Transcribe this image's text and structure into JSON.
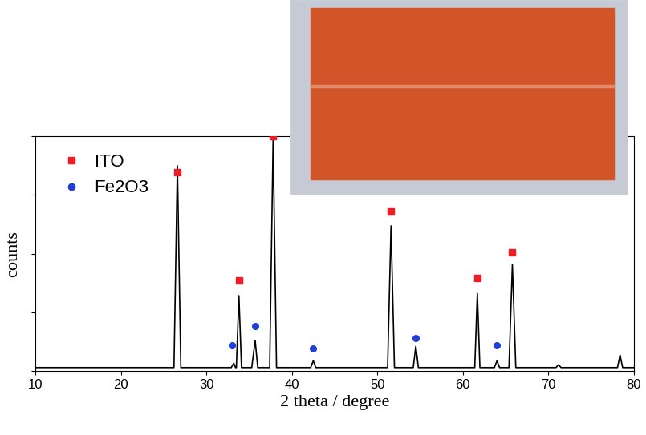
{
  "chart_data": {
    "type": "line",
    "y_label": "counts",
    "x_label": "2 theta / degree",
    "x": [
      10,
      26.2,
      26.6,
      27.0,
      32.9,
      33.2,
      33.4,
      33.5,
      33.8,
      34.1,
      35.3,
      35.7,
      36.0,
      37.4,
      37.8,
      38.2,
      42.2,
      42.5,
      42.8,
      51.2,
      51.6,
      52.0,
      54.2,
      54.5,
      54.8,
      61.4,
      61.7,
      62.0,
      63.7,
      64.0,
      64.3,
      65.4,
      65.8,
      66.2,
      70.9,
      71.2,
      71.5,
      78.1,
      78.4,
      78.7,
      80
    ],
    "values": [
      15,
      15,
      874,
      15,
      15,
      34,
      15,
      15,
      321,
      15,
      15,
      130,
      15,
      15,
      985,
      15,
      15,
      44,
      15,
      15,
      618,
      15,
      15,
      106,
      15,
      15,
      331,
      15,
      15,
      44,
      15,
      15,
      454,
      15,
      15,
      27,
      15,
      15,
      68,
      15,
      15
    ],
    "color": "#000000",
    "series": [
      {
        "name": "ITO",
        "type": "scatter",
        "marker": "square",
        "color": "#ee1c24",
        "x": [
          26.6,
          33.8,
          37.8,
          51.6,
          61.7,
          65.8
        ],
        "values": [
          845,
          385,
          1000,
          680,
          395,
          505
        ]
      },
      {
        "name": "Fe2O3",
        "type": "scatter",
        "marker": "circle",
        "color": "#1f3fd6",
        "x": [
          33.0,
          35.7,
          42.5,
          54.5,
          64.0
        ],
        "values": [
          110,
          190,
          95,
          140,
          110
        ]
      }
    ],
    "xlim": [
      10,
      80
    ],
    "xticks": [
      10,
      20,
      30,
      40,
      50,
      60,
      70,
      80
    ],
    "ylim": [
      0,
      1000
    ],
    "yticks": [
      0,
      250,
      500,
      750,
      1000
    ],
    "tick_labels": "x",
    "legend": "upper left"
  }
}
